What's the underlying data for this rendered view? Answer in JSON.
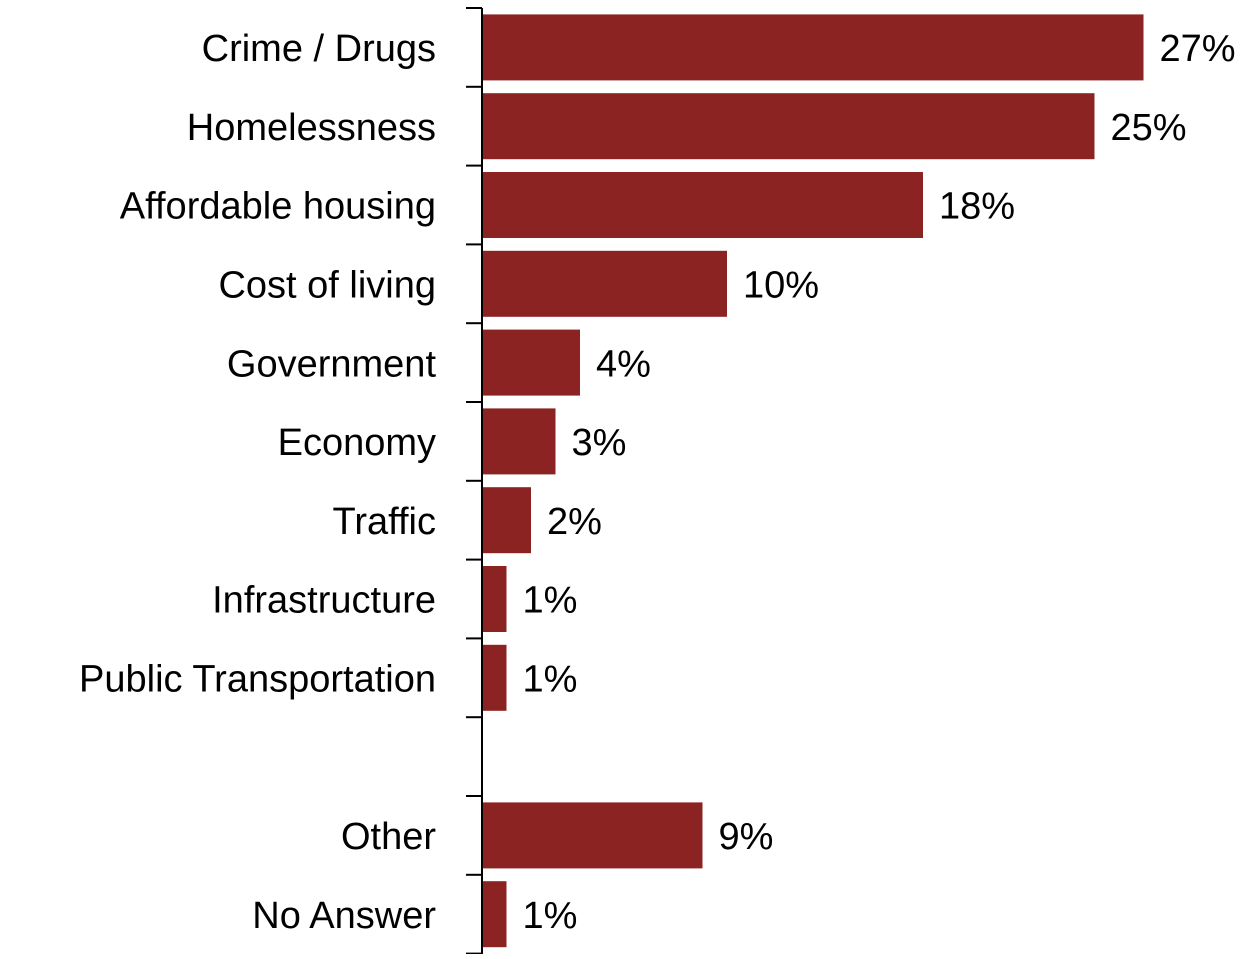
{
  "chart_data": {
    "type": "bar",
    "orientation": "horizontal",
    "title": "",
    "xlabel": "",
    "ylabel": "",
    "categories": [
      "Crime / Drugs",
      "Homelessness",
      "Affordable housing",
      "Cost of living",
      "Government",
      "Economy",
      "Traffic",
      "Infrastructure",
      "Public Transportation",
      "",
      "Other",
      "No Answer"
    ],
    "values": [
      27,
      25,
      18,
      10,
      4,
      3,
      2,
      1,
      1,
      null,
      9,
      1
    ],
    "data_labels": [
      "27%",
      "25%",
      "18%",
      "10%",
      "4%",
      "3%",
      "2%",
      "1%",
      "1%",
      "",
      "9%",
      "1%"
    ],
    "value_unit": "%",
    "xlim": [
      0,
      30
    ],
    "grid": false,
    "legend": "none",
    "bar_color": "#8B2323"
  }
}
